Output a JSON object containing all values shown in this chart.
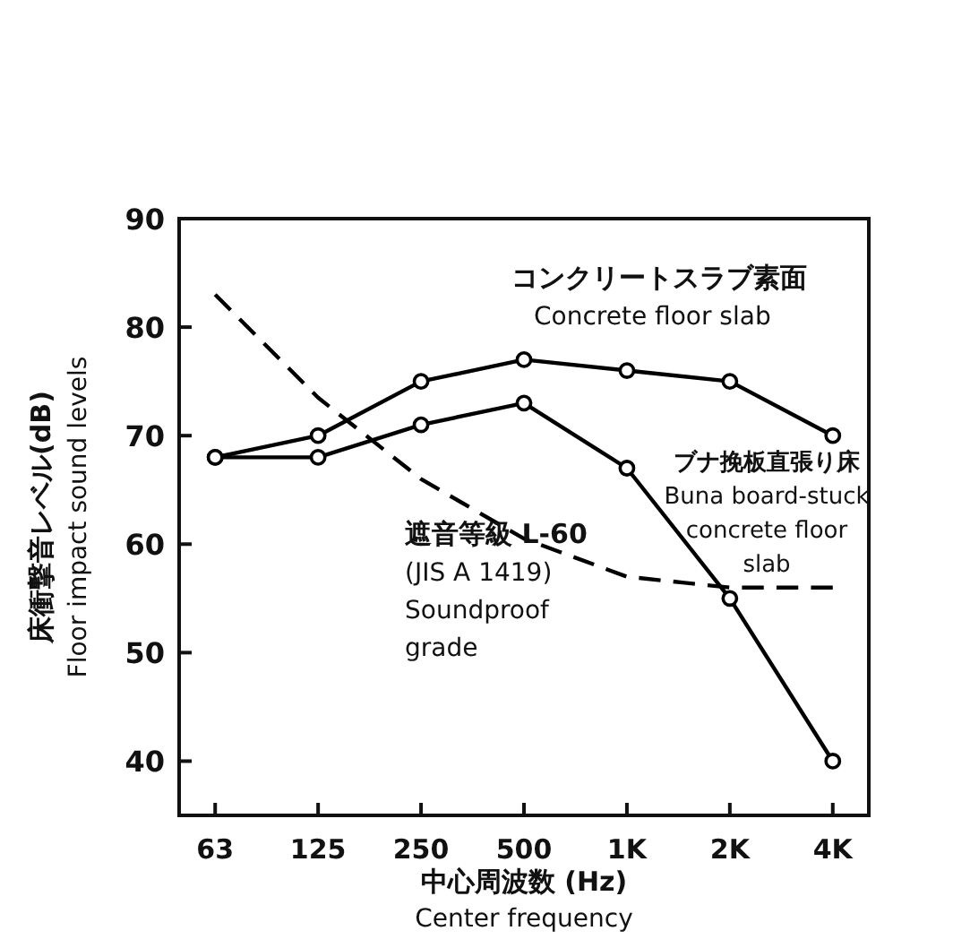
{
  "chart_data": {
    "type": "line",
    "xlabel": "中心周波数 (Hz)\nCenter frequency",
    "ylabel": "床衝撃音レベル(dB)\nFloor impact sound levels",
    "categories": [
      "63",
      "125",
      "250",
      "500",
      "1K",
      "2K",
      "4K"
    ],
    "ylim": [
      35,
      90
    ],
    "yticks": [
      40,
      50,
      60,
      70,
      80,
      90
    ],
    "series": [
      {
        "name": "コンクリートスラブ素面\nConcrete floor slab",
        "color": "#000000",
        "marker": "circle",
        "line_style": "solid",
        "values": [
          68,
          70,
          75,
          77,
          76,
          75,
          70
        ]
      },
      {
        "name": "ブナ挽板直張り床\nBuna board-stuck\nconcrete floor\nslab",
        "color": "#000000",
        "marker": "circle",
        "line_style": "solid",
        "values": [
          68,
          68,
          71,
          73,
          67,
          55,
          40
        ]
      },
      {
        "name": "遮音等級 L-60\n(JIS A 1419)\nSoundproof\ngrade",
        "color": "#000000",
        "marker": "none",
        "line_style": "dashed",
        "values": [
          83,
          73.5,
          66,
          60.5,
          57,
          56,
          56
        ]
      }
    ]
  }
}
